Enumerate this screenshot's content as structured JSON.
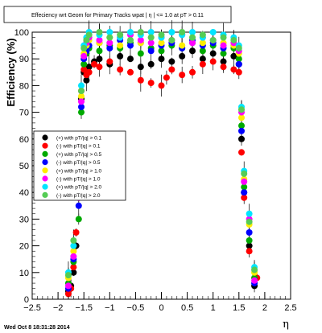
{
  "chart_data": {
    "type": "scatter",
    "title": "Effeciency wrt Geom for Primary Tracks wpat | η | <= 1.0 at pT > 0.11",
    "ylabel": "Efficiency (%)",
    "xlabel": "η",
    "xlim": [
      -2.5,
      2.5
    ],
    "ylim": [
      0,
      100
    ],
    "x_ticks": [
      "−2.5",
      "−2",
      "−1.5",
      "−1",
      "−0.5",
      "0",
      "0.5",
      "1",
      "1.5",
      "2",
      "2.5"
    ],
    "y_ticks": [
      "0",
      "10",
      "20",
      "30",
      "40",
      "50",
      "60",
      "70",
      "80",
      "90",
      "100"
    ],
    "grid": false,
    "legend_position": "left-middle",
    "error_bars": true,
    "series": [
      {
        "name": "(+) with pT/|q| > 0.1",
        "color": "#000000",
        "x": [
          -1.8,
          -1.75,
          -1.7,
          -1.65,
          -1.6,
          -1.55,
          -1.5,
          -1.45,
          -1.4,
          -1.3,
          -1.2,
          -1.0,
          -0.8,
          -0.6,
          -0.4,
          -0.2,
          0.0,
          0.2,
          0.4,
          0.6,
          0.8,
          1.0,
          1.2,
          1.4,
          1.5,
          1.55,
          1.6,
          1.7,
          1.8
        ],
        "y": [
          3,
          5,
          10,
          20,
          50,
          75,
          85,
          82,
          87,
          89,
          90,
          88,
          91,
          90,
          87,
          88,
          90,
          89,
          91,
          93,
          90,
          92,
          89,
          91,
          88,
          60,
          40,
          20,
          5
        ]
      },
      {
        "name": "(-) with pT/|q| > 0.1",
        "color": "#ff0000",
        "x": [
          -1.8,
          -1.75,
          -1.7,
          -1.65,
          -1.6,
          -1.55,
          -1.5,
          -1.45,
          -1.4,
          -1.3,
          -1.2,
          -1.0,
          -0.8,
          -0.6,
          -0.4,
          -0.2,
          0.0,
          0.1,
          0.2,
          0.4,
          0.6,
          0.8,
          1.0,
          1.2,
          1.4,
          1.5,
          1.55,
          1.6,
          1.7,
          1.85
        ],
        "y": [
          2,
          4,
          12,
          25,
          52,
          78,
          86,
          84,
          85,
          88,
          87,
          89,
          86,
          85,
          82,
          81,
          80,
          83,
          86,
          84,
          85,
          88,
          89,
          87,
          86,
          85,
          55,
          38,
          18,
          8
        ]
      },
      {
        "name": "(+) with pT/|q| > 0.5",
        "color": "#00aa00",
        "x": [
          -1.8,
          -1.7,
          -1.6,
          -1.55,
          -1.5,
          -1.45,
          -1.4,
          -1.2,
          -1.0,
          -0.8,
          -0.6,
          -0.4,
          -0.2,
          0.0,
          0.2,
          0.4,
          0.6,
          0.8,
          1.0,
          1.2,
          1.4,
          1.5,
          1.55,
          1.6,
          1.7,
          1.8
        ],
        "y": [
          6,
          14,
          30,
          70,
          88,
          92,
          94,
          93,
          95,
          94,
          96,
          92,
          94,
          93,
          95,
          94,
          96,
          93,
          95,
          92,
          94,
          90,
          65,
          42,
          22,
          8
        ]
      },
      {
        "name": "(-) with pT/|q| > 0.5",
        "color": "#0000ff",
        "x": [
          -1.8,
          -1.7,
          -1.6,
          -1.55,
          -1.5,
          -1.45,
          -1.4,
          -1.2,
          -1.0,
          -0.8,
          -0.6,
          -0.4,
          -0.2,
          0.0,
          0.2,
          0.4,
          0.6,
          0.8,
          1.0,
          1.2,
          1.4,
          1.5,
          1.55,
          1.6,
          1.7,
          1.8
        ],
        "y": [
          4,
          15,
          35,
          72,
          90,
          93,
          95,
          96,
          94,
          97,
          95,
          96,
          93,
          95,
          96,
          94,
          97,
          95,
          96,
          94,
          95,
          88,
          63,
          40,
          25,
          6
        ]
      },
      {
        "name": "(+) with pT/|q| > 1.0",
        "color": "#ffee00",
        "x": [
          -1.8,
          -1.7,
          -1.6,
          -1.55,
          -1.5,
          -1.45,
          -1.4,
          -1.2,
          -1.0,
          -0.8,
          -0.6,
          -0.4,
          -0.2,
          0.0,
          0.2,
          0.4,
          0.6,
          0.8,
          1.0,
          1.2,
          1.4,
          1.5,
          1.55,
          1.6,
          1.7,
          1.8
        ],
        "y": [
          8,
          18,
          40,
          76,
          92,
          95,
          97,
          96,
          98,
          95,
          97,
          96,
          98,
          96,
          97,
          95,
          98,
          96,
          97,
          96,
          95,
          92,
          68,
          45,
          28,
          10
        ]
      },
      {
        "name": "(-) with pT/|q| > 1.0",
        "color": "#ff00ff",
        "x": [
          -1.8,
          -1.7,
          -1.6,
          -1.55,
          -1.5,
          -1.45,
          -1.4,
          -1.2,
          -1.0,
          -0.8,
          -0.6,
          -0.4,
          -0.2,
          0.0,
          0.2,
          0.4,
          0.6,
          0.8,
          1.0,
          1.2,
          1.4,
          1.5,
          1.55,
          1.6,
          1.7,
          1.8
        ],
        "y": [
          5,
          16,
          38,
          74,
          91,
          96,
          98,
          97,
          96,
          98,
          99,
          97,
          96,
          98,
          97,
          99,
          96,
          98,
          97,
          95,
          96,
          93,
          70,
          44,
          30,
          7
        ]
      },
      {
        "name": "(+) with pT/|q| > 2.0",
        "color": "#00e5ff",
        "x": [
          -1.8,
          -1.7,
          -1.6,
          -1.55,
          -1.5,
          -1.45,
          -1.4,
          -1.2,
          -1.0,
          -0.8,
          -0.6,
          -0.4,
          -0.2,
          0.0,
          0.2,
          0.4,
          0.6,
          0.8,
          1.0,
          1.2,
          1.4,
          1.5,
          1.55,
          1.6,
          1.7,
          1.8
        ],
        "y": [
          10,
          20,
          45,
          80,
          95,
          98,
          100,
          99,
          100,
          98,
          100,
          99,
          100,
          98,
          100,
          99,
          100,
          98,
          100,
          99,
          98,
          95,
          72,
          48,
          32,
          12
        ]
      },
      {
        "name": "(-) with pT/|q| > 2.0",
        "color": "#55cc55",
        "x": [
          -1.8,
          -1.7,
          -1.6,
          -1.55,
          -1.5,
          -1.45,
          -1.4,
          -1.2,
          -1.0,
          -0.8,
          -0.6,
          -0.4,
          -0.2,
          0.0,
          0.2,
          0.4,
          0.6,
          0.8,
          1.0,
          1.2,
          1.4,
          1.5,
          1.55,
          1.6,
          1.7,
          1.8
        ],
        "y": [
          9,
          22,
          42,
          78,
          94,
          97,
          99,
          100,
          98,
          99,
          97,
          100,
          98,
          99,
          97,
          100,
          98,
          99,
          97,
          98,
          97,
          94,
          71,
          47,
          29,
          11
        ]
      }
    ]
  },
  "timestamp": "Wed Oct  8 18:31:28 2014"
}
